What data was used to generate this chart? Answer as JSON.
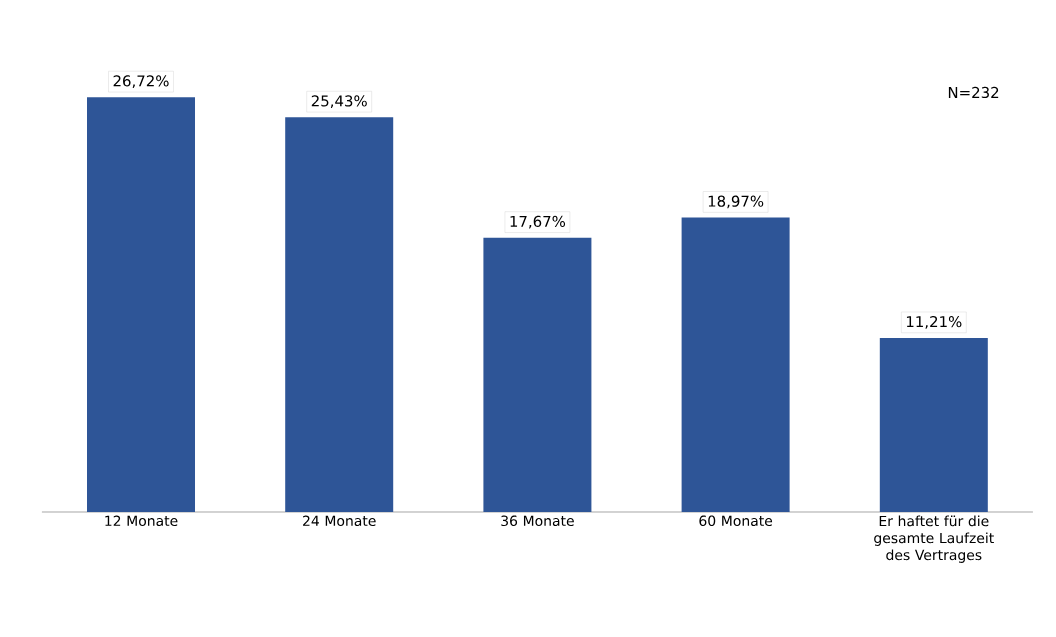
{
  "chart_data": {
    "type": "bar",
    "categories": [
      "12 Monate",
      "24 Monate",
      "36 Monate",
      "60 Monate",
      "Er haftet für die gesamte Laufzeit des Vertrages"
    ],
    "values": [
      26.72,
      25.43,
      17.67,
      18.97,
      11.21
    ],
    "value_labels": [
      "26,72%",
      "25,43%",
      "17,67%",
      "18,97%",
      "11,21%"
    ],
    "color": "#2e5597",
    "tick_labels": "x",
    "annotations": [
      "N=232"
    ]
  }
}
